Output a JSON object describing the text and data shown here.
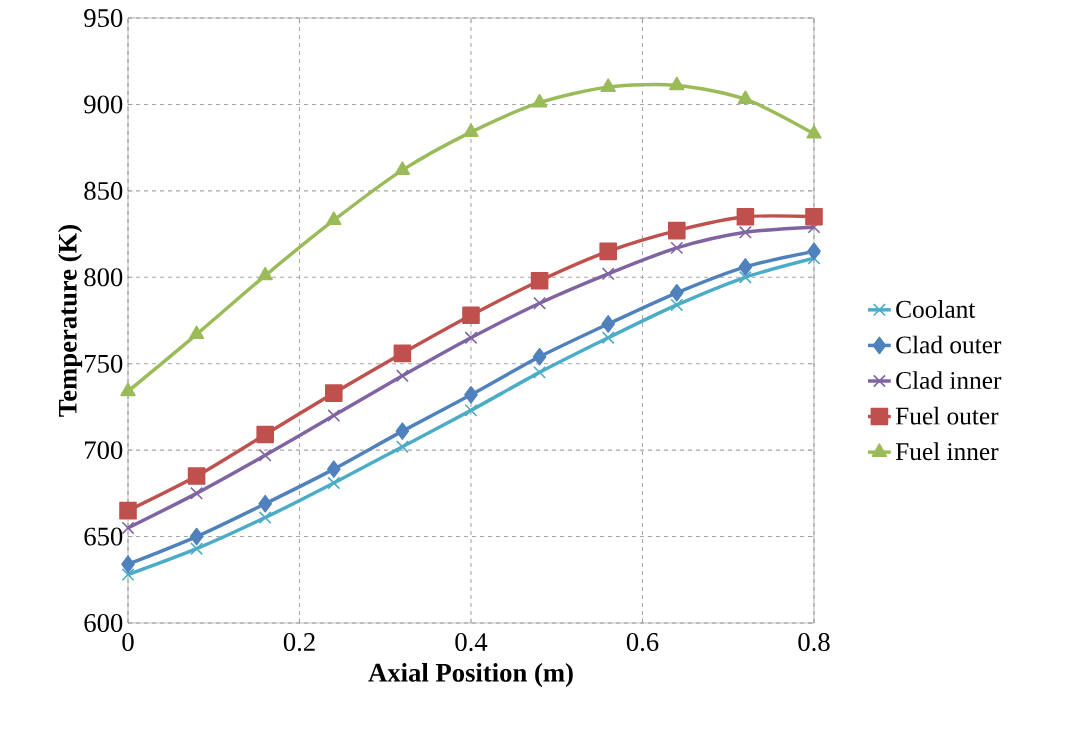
{
  "chart_data": {
    "type": "line",
    "xlabel": "Axial Position (m)",
    "ylabel": "Temperature (K)",
    "x": [
      0,
      0.08,
      0.16,
      0.24,
      0.32,
      0.4,
      0.48,
      0.56,
      0.64,
      0.72,
      0.8
    ],
    "series": [
      {
        "name": "Coolant",
        "color": "#4bacc6",
        "marker": "cross",
        "values": [
          628,
          643,
          661,
          681,
          702,
          723,
          745,
          765,
          784,
          800,
          811
        ]
      },
      {
        "name": "Clad outer",
        "color": "#4f81bd",
        "marker": "diamond",
        "values": [
          634,
          650,
          669,
          689,
          711,
          732,
          754,
          773,
          791,
          806,
          815
        ]
      },
      {
        "name": "Clad inner",
        "color": "#8064a2",
        "marker": "cross",
        "values": [
          655,
          675,
          697,
          720,
          743,
          765,
          785,
          802,
          817,
          826,
          829
        ]
      },
      {
        "name": "Fuel outer",
        "color": "#c0504d",
        "marker": "square",
        "values": [
          665,
          685,
          709,
          733,
          756,
          778,
          798,
          815,
          827,
          835,
          835
        ]
      },
      {
        "name": "Fuel inner",
        "color": "#9bbb59",
        "marker": "triangle",
        "values": [
          734,
          767,
          801,
          833,
          862,
          884,
          901,
          910,
          911,
          903,
          883
        ]
      }
    ],
    "xlim": [
      0,
      0.8
    ],
    "ylim": [
      600,
      950
    ],
    "xticks": [
      0,
      0.2,
      0.4,
      0.6,
      0.8
    ],
    "yticks": [
      600,
      650,
      700,
      750,
      800,
      850,
      900,
      950
    ],
    "grid": true,
    "legend": "right",
    "line_style": "solid"
  }
}
